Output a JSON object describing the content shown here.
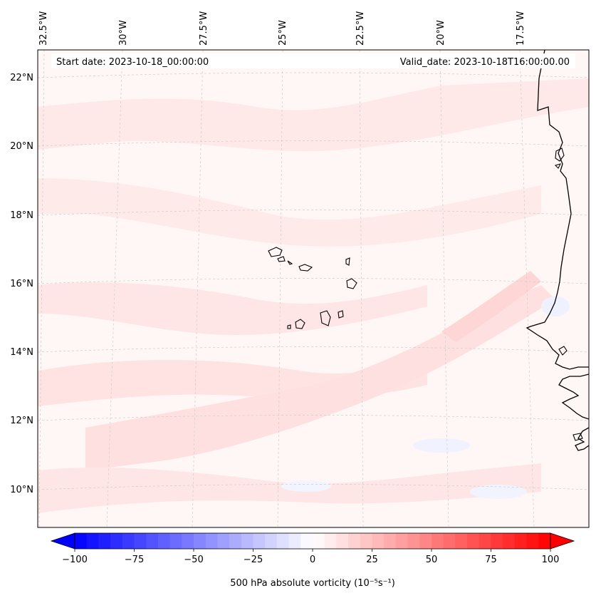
{
  "map": {
    "start_date_label": "Start date: 2023-10-18_00:00:00",
    "valid_date_label": "Valid_date: 2023-10-18T16:00:00.00",
    "lon_labels": [
      "32.5°W",
      "30°W",
      "27.5°W",
      "25°W",
      "22.5°W",
      "20°W",
      "17.5°W"
    ],
    "lat_labels": [
      "22°N",
      "20°N",
      "18°N",
      "16°N",
      "14°N",
      "12°N",
      "10°N"
    ],
    "field_palette": {
      "background": "#fff6f6",
      "light_pink": "#ffe4e4",
      "medium_pink": "#ffd2d2",
      "light_blue": "#eef1ff",
      "coast": "#000000",
      "grid": "#cccccc"
    }
  },
  "colorbar": {
    "label": "500 hPa absolute vorticity (10⁻⁵s⁻¹)",
    "ticks": [
      "−100",
      "−75",
      "−50",
      "−25",
      "0",
      "25",
      "50",
      "75",
      "100"
    ],
    "vmin": -100,
    "vmax": 100,
    "min_color": "#0000ff",
    "mid_color": "#ffffff",
    "max_color": "#ff0000"
  }
}
